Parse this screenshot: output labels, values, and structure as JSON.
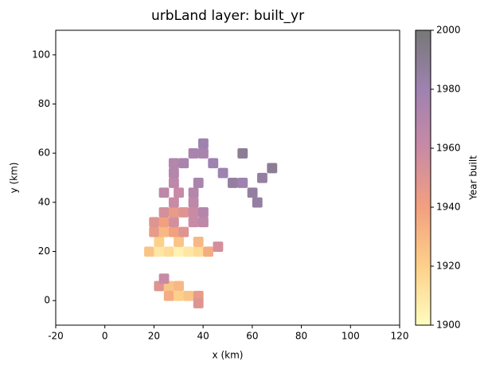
{
  "chart_data": {
    "type": "heatmap",
    "title": "urbLand layer: built_yr",
    "xlabel": "x (km)",
    "ylabel": "y (km)",
    "colorbar_label": "Year built",
    "xlim": [
      -20,
      120
    ],
    "xticks": [
      -20,
      0,
      20,
      40,
      60,
      80,
      100,
      120
    ],
    "ylim": [
      -10,
      110
    ],
    "yticks": [
      0,
      20,
      40,
      60,
      80,
      100
    ],
    "clim": [
      1900,
      2000
    ],
    "cticks": [
      1900,
      1920,
      1940,
      1960,
      1980,
      2000
    ],
    "colormap": [
      "#fffcbf",
      "#fdd08a",
      "#f2a07f",
      "#c98aa5",
      "#9e82b0",
      "#777777"
    ],
    "x": [
      22,
      26,
      30,
      26,
      30,
      34,
      38,
      38,
      24,
      18,
      22,
      26,
      30,
      34,
      38,
      42,
      46,
      22,
      30,
      38,
      20,
      24,
      28,
      32,
      20,
      24,
      28,
      36,
      40,
      24,
      28,
      32,
      36,
      40,
      28,
      36,
      24,
      30,
      36,
      28,
      38,
      28,
      28,
      32,
      36,
      40,
      40,
      44,
      48,
      52,
      56,
      60,
      62,
      64,
      68,
      56
    ],
    "y": [
      6,
      6,
      6,
      2,
      2,
      2,
      2,
      -1,
      9,
      20,
      20,
      20,
      20,
      20,
      20,
      20,
      22,
      24,
      24,
      24,
      28,
      28,
      28,
      28,
      32,
      32,
      32,
      32,
      32,
      36,
      36,
      36,
      36,
      36,
      40,
      40,
      44,
      44,
      44,
      48,
      48,
      52,
      56,
      56,
      60,
      60,
      64,
      56,
      52,
      48,
      48,
      44,
      40,
      50,
      54,
      60
    ],
    "values": [
      1950,
      1925,
      1930,
      1935,
      1920,
      1925,
      1945,
      1950,
      1960,
      1925,
      1910,
      1915,
      1905,
      1910,
      1915,
      1935,
      1955,
      1920,
      1925,
      1930,
      1945,
      1930,
      1940,
      1950,
      1950,
      1940,
      1955,
      1960,
      1965,
      1955,
      1945,
      1950,
      1960,
      1970,
      1960,
      1965,
      1965,
      1960,
      1970,
      1965,
      1975,
      1970,
      1970,
      1975,
      1975,
      1975,
      1980,
      1980,
      1980,
      1985,
      1980,
      1985,
      1985,
      1985,
      1990,
      1990
    ]
  }
}
